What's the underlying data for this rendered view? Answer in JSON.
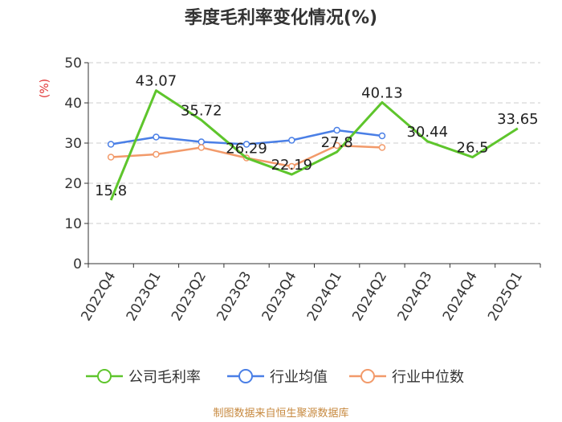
{
  "chart_data": {
    "type": "line",
    "title": "季度毛利率变化情况(%)",
    "unit_label": "(%)",
    "categories": [
      "2022Q4",
      "2023Q1",
      "2023Q2",
      "2023Q3",
      "2023Q4",
      "2024Q1",
      "2024Q2",
      "2024Q3",
      "2024Q4",
      "2025Q1"
    ],
    "yticks": [
      "0",
      "10",
      "20",
      "30",
      "40",
      "50"
    ],
    "ylim": [
      0,
      50
    ],
    "grid": true,
    "legend_position": "bottom",
    "series": [
      {
        "name": "公司毛利率",
        "color": "#5ec52c",
        "values": [
          15.8,
          43.07,
          35.72,
          26.29,
          22.19,
          27.8,
          40.13,
          30.44,
          26.5,
          33.65
        ],
        "labels": [
          "15.8",
          "43.07",
          "35.72",
          "26.29",
          "22.19",
          "27.8",
          "40.13",
          "30.44",
          "26.5",
          "33.65"
        ]
      },
      {
        "name": "行业均值",
        "color": "#4a7fe6",
        "values": [
          29.7,
          31.5,
          30.3,
          29.7,
          30.7,
          33.2,
          31.8,
          null,
          null,
          null
        ]
      },
      {
        "name": "行业中位数",
        "color": "#f29a6a",
        "values": [
          26.5,
          27.2,
          28.9,
          26.3,
          24.2,
          29.4,
          28.9,
          null,
          null,
          null
        ]
      }
    ],
    "source": "制图数据来自恒生聚源数据库"
  }
}
